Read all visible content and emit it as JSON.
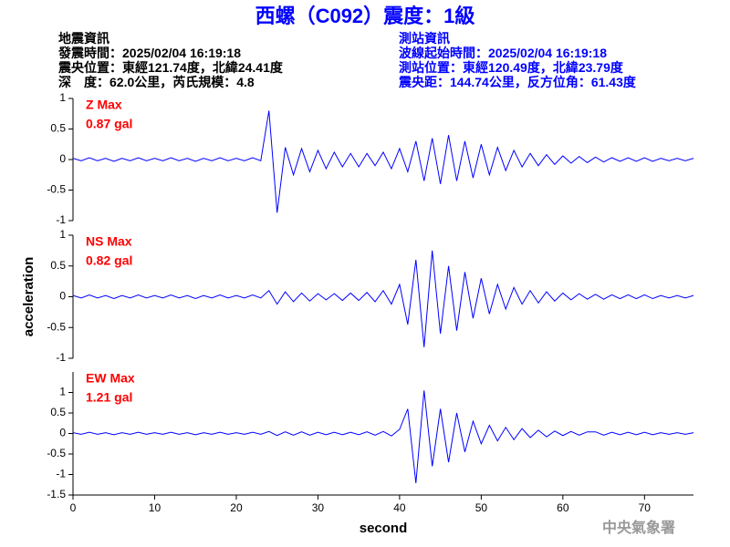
{
  "header": {
    "title": "西螺（C092）震度：1級",
    "left": [
      "地震資訊",
      "發震時間：2025/02/04 16:19:18",
      "震央位置：東經121.74度，北緯24.41度",
      "深　度：62.0公里，芮氏規模：4.8"
    ],
    "right": [
      "測站資訊",
      "波線起始時間：2025/02/04 16:19:18",
      "測站位置：東經120.49度，北緯23.79度",
      "震央距：144.74公里，反方位角：61.43度"
    ],
    "watermark": "中央氣象署"
  },
  "chart_data": [
    {
      "type": "line",
      "color": "#0000ff",
      "annotations": [
        "Z Max",
        "0.87 gal"
      ],
      "annotation_color": "#ff0000",
      "x": [
        0,
        1,
        2,
        3,
        4,
        5,
        6,
        7,
        8,
        9,
        10,
        11,
        12,
        13,
        14,
        15,
        16,
        17,
        18,
        19,
        20,
        21,
        22,
        23,
        24,
        25,
        26,
        27,
        28,
        29,
        30,
        31,
        32,
        33,
        34,
        35,
        36,
        37,
        38,
        39,
        40,
        41,
        42,
        43,
        44,
        45,
        46,
        47,
        48,
        49,
        50,
        51,
        52,
        53,
        54,
        55,
        56,
        57,
        58,
        59,
        60,
        61,
        62,
        63,
        64,
        65,
        66,
        67,
        68,
        69,
        70,
        71,
        72,
        73,
        74,
        75,
        76
      ],
      "values": [
        0.02,
        -0.02,
        0.03,
        -0.02,
        0.02,
        -0.03,
        0.02,
        -0.02,
        0.03,
        -0.02,
        0.02,
        -0.02,
        0.03,
        -0.02,
        0.02,
        -0.03,
        0.02,
        -0.02,
        0.03,
        -0.02,
        0.02,
        -0.02,
        0.03,
        -0.02,
        0.8,
        -0.87,
        0.2,
        -0.25,
        0.18,
        -0.2,
        0.15,
        -0.15,
        0.12,
        -0.12,
        0.1,
        -0.12,
        0.1,
        -0.1,
        0.12,
        -0.15,
        0.18,
        -0.2,
        0.3,
        -0.35,
        0.35,
        -0.4,
        0.4,
        -0.35,
        0.3,
        -0.3,
        0.25,
        -0.25,
        0.2,
        -0.18,
        0.15,
        -0.12,
        0.1,
        -0.1,
        0.08,
        -0.08,
        0.06,
        -0.06,
        0.05,
        -0.05,
        0.04,
        -0.04,
        0.03,
        -0.03,
        0.03,
        -0.03,
        0.03,
        -0.03,
        0.02,
        -0.02,
        0.02,
        -0.02,
        0.02
      ],
      "xlim": [
        0,
        76
      ],
      "ylim": [
        -1,
        1
      ],
      "yticks": [
        -1,
        -0.5,
        0,
        0.5,
        1
      ]
    },
    {
      "type": "line",
      "color": "#0000ff",
      "annotations": [
        "NS Max",
        "0.82 gal"
      ],
      "annotation_color": "#ff0000",
      "ylabel": "acceleration",
      "x": [
        0,
        1,
        2,
        3,
        4,
        5,
        6,
        7,
        8,
        9,
        10,
        11,
        12,
        13,
        14,
        15,
        16,
        17,
        18,
        19,
        20,
        21,
        22,
        23,
        24,
        25,
        26,
        27,
        28,
        29,
        30,
        31,
        32,
        33,
        34,
        35,
        36,
        37,
        38,
        39,
        40,
        41,
        42,
        43,
        44,
        45,
        46,
        47,
        48,
        49,
        50,
        51,
        52,
        53,
        54,
        55,
        56,
        57,
        58,
        59,
        60,
        61,
        62,
        63,
        64,
        65,
        66,
        67,
        68,
        69,
        70,
        71,
        72,
        73,
        74,
        75,
        76
      ],
      "values": [
        0.02,
        -0.02,
        0.03,
        -0.02,
        0.02,
        -0.03,
        0.02,
        -0.02,
        0.03,
        -0.02,
        0.02,
        -0.02,
        0.03,
        -0.02,
        0.02,
        -0.03,
        0.02,
        -0.02,
        0.03,
        -0.02,
        0.02,
        -0.02,
        0.03,
        -0.02,
        0.1,
        -0.12,
        0.08,
        -0.08,
        0.06,
        -0.07,
        0.05,
        -0.05,
        0.05,
        -0.06,
        0.06,
        -0.06,
        0.07,
        -0.08,
        0.1,
        -0.12,
        0.2,
        -0.45,
        0.6,
        -0.82,
        0.75,
        -0.6,
        0.5,
        -0.55,
        0.4,
        -0.35,
        0.3,
        -0.28,
        0.2,
        -0.2,
        0.15,
        -0.12,
        0.1,
        -0.1,
        0.08,
        -0.07,
        0.06,
        -0.05,
        0.05,
        -0.04,
        0.04,
        -0.04,
        0.03,
        -0.03,
        0.03,
        -0.03,
        0.03,
        -0.03,
        0.02,
        -0.02,
        0.02,
        -0.02,
        0.02
      ],
      "xlim": [
        0,
        76
      ],
      "ylim": [
        -1,
        1
      ],
      "yticks": [
        -1,
        -0.5,
        0,
        0.5,
        1
      ]
    },
    {
      "type": "line",
      "color": "#0000ff",
      "annotations": [
        "EW Max",
        "1.21 gal"
      ],
      "annotation_color": "#ff0000",
      "xlabel": "second",
      "x": [
        0,
        1,
        2,
        3,
        4,
        5,
        6,
        7,
        8,
        9,
        10,
        11,
        12,
        13,
        14,
        15,
        16,
        17,
        18,
        19,
        20,
        21,
        22,
        23,
        24,
        25,
        26,
        27,
        28,
        29,
        30,
        31,
        32,
        33,
        34,
        35,
        36,
        37,
        38,
        39,
        40,
        41,
        42,
        43,
        44,
        45,
        46,
        47,
        48,
        49,
        50,
        51,
        52,
        53,
        54,
        55,
        56,
        57,
        58,
        59,
        60,
        61,
        62,
        63,
        64,
        65,
        66,
        67,
        68,
        69,
        70,
        71,
        72,
        73,
        74,
        75,
        76
      ],
      "values": [
        0.02,
        -0.02,
        0.03,
        -0.02,
        0.02,
        -0.03,
        0.02,
        -0.02,
        0.03,
        -0.02,
        0.02,
        -0.02,
        0.03,
        -0.02,
        0.02,
        -0.03,
        0.02,
        -0.02,
        0.03,
        -0.02,
        0.02,
        -0.02,
        0.03,
        -0.02,
        0.05,
        -0.05,
        0.04,
        -0.04,
        0.04,
        -0.04,
        0.03,
        -0.03,
        0.03,
        -0.03,
        0.03,
        -0.03,
        0.04,
        -0.04,
        0.05,
        -0.06,
        0.1,
        0.6,
        -1.21,
        1.05,
        -0.8,
        0.6,
        -0.7,
        0.5,
        -0.45,
        0.3,
        -0.25,
        0.2,
        -0.18,
        0.15,
        -0.15,
        0.12,
        -0.1,
        0.08,
        -0.08,
        0.06,
        -0.05,
        0.05,
        -0.04,
        0.04,
        0.04,
        -0.04,
        0.03,
        -0.03,
        0.03,
        -0.03,
        0.03,
        -0.03,
        0.02,
        -0.02,
        0.02,
        -0.02,
        0.02
      ],
      "xlim": [
        0,
        76
      ],
      "ylim": [
        -1.5,
        1.5
      ],
      "yticks": [
        -1.5,
        -1,
        -0.5,
        0,
        0.5,
        1
      ],
      "xticks": [
        0,
        10,
        20,
        30,
        40,
        50,
        60,
        70
      ]
    }
  ]
}
